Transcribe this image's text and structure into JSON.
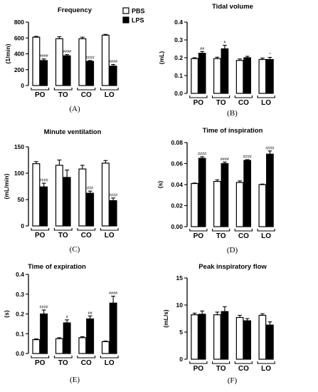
{
  "legend": {
    "pbs": "PBS",
    "lps": "LPS",
    "colors": {
      "pbs": "#ffffff",
      "lps": "#000000"
    }
  },
  "chart_data": [
    {
      "panel": "(A)",
      "type": "bar",
      "title": "Frequency",
      "ylabel": "(1/min)",
      "xlabel": "",
      "categories": [
        "PO",
        "TO",
        "CO",
        "LO"
      ],
      "ylim": [
        0,
        800
      ],
      "yticks": [
        0,
        200,
        400,
        600,
        800
      ],
      "ytick_labels": [
        "0",
        "200",
        "400",
        "600",
        "800"
      ],
      "series": [
        {
          "name": "PBS",
          "values": [
            610,
            590,
            590,
            635
          ],
          "errors": [
            10,
            25,
            20,
            10
          ]
        },
        {
          "name": "LPS",
          "values": [
            315,
            375,
            305,
            245
          ],
          "errors": [
            20,
            15,
            10,
            20
          ]
        }
      ],
      "annotations": [
        "####",
        "####",
        "####",
        "####"
      ],
      "legend": "top-right"
    },
    {
      "panel": "(B)",
      "type": "bar",
      "title": "Tidal volume",
      "ylabel": "(mL)",
      "xlabel": "",
      "categories": [
        "PO",
        "TO",
        "CO",
        "LO"
      ],
      "ylim": [
        0,
        0.4
      ],
      "yticks": [
        0,
        0.1,
        0.2,
        0.3,
        0.4
      ],
      "ytick_labels": [
        "0.0",
        "0.1",
        "0.2",
        "0.3",
        "0.4"
      ],
      "series": [
        {
          "name": "PBS",
          "values": [
            0.195,
            0.195,
            0.185,
            0.19
          ],
          "errors": [
            0.005,
            0.008,
            0.008,
            0.008
          ]
        },
        {
          "name": "LPS",
          "values": [
            0.225,
            0.25,
            0.2,
            0.19
          ],
          "errors": [
            0.01,
            0.02,
            0.008,
            0.012
          ]
        }
      ],
      "annotations": [
        "##",
        "#",
        "",
        "*"
      ]
    },
    {
      "panel": "(C)",
      "type": "bar",
      "title": "Minute ventilation",
      "ylabel": "(mL/min)",
      "xlabel": "",
      "categories": [
        "PO",
        "TO",
        "CO",
        "LO"
      ],
      "ylim": [
        0,
        150
      ],
      "yticks": [
        0,
        50,
        100,
        150
      ],
      "ytick_labels": [
        "0",
        "50",
        "100",
        "150"
      ],
      "series": [
        {
          "name": "PBS",
          "values": [
            118,
            115,
            108,
            119
          ],
          "errors": [
            4,
            10,
            7,
            5
          ]
        },
        {
          "name": "LPS",
          "values": [
            74,
            92,
            62,
            48
          ],
          "errors": [
            7,
            14,
            4,
            5
          ]
        }
      ],
      "annotations": [
        "####",
        "",
        "###",
        "####"
      ]
    },
    {
      "panel": "(D)",
      "type": "bar",
      "title": "Time of inspiration",
      "ylabel": "(s)",
      "xlabel": "",
      "categories": [
        "PO",
        "TO",
        "CO",
        "LO"
      ],
      "ylim": [
        0,
        0.08
      ],
      "yticks": [
        0,
        0.02,
        0.04,
        0.06,
        0.08
      ],
      "ytick_labels": [
        "0.00",
        "0.02",
        "0.04",
        "0.06",
        "0.08"
      ],
      "series": [
        {
          "name": "PBS",
          "values": [
            0.041,
            0.043,
            0.042,
            0.04
          ],
          "errors": [
            0.0005,
            0.0015,
            0.0015,
            0.0005
          ]
        },
        {
          "name": "LPS",
          "values": [
            0.065,
            0.06,
            0.063,
            0.069
          ],
          "errors": [
            0.0015,
            0.0015,
            0.0007,
            0.003
          ]
        }
      ],
      "annotations": [
        "####",
        "####",
        "####",
        "####"
      ]
    },
    {
      "panel": "(E)",
      "type": "bar",
      "title": "Time of expiration",
      "ylabel": "(s)",
      "xlabel": "",
      "categories": [
        "PO",
        "TO",
        "CO",
        "LO"
      ],
      "ylim": [
        0,
        0.4
      ],
      "yticks": [
        0,
        0.1,
        0.2,
        0.3,
        0.4
      ],
      "ytick_labels": [
        "0.0",
        "0.1",
        "0.2",
        "0.3",
        "0.4"
      ],
      "series": [
        {
          "name": "PBS",
          "values": [
            0.07,
            0.075,
            0.08,
            0.06
          ],
          "errors": [
            0.004,
            0.005,
            0.005,
            0.003
          ]
        },
        {
          "name": "LPS",
          "values": [
            0.2,
            0.155,
            0.175,
            0.255
          ],
          "errors": [
            0.02,
            0.015,
            0.015,
            0.035
          ]
        }
      ],
      "annotations": [
        "####",
        "#",
        "##",
        "####"
      ]
    },
    {
      "panel": "(F)",
      "type": "bar",
      "title": "Peak inspiratory flow",
      "ylabel": "(mL/s)",
      "xlabel": "",
      "categories": [
        "PO",
        "TO",
        "CO",
        "LO"
      ],
      "ylim": [
        0,
        15
      ],
      "yticks": [
        0,
        5,
        10,
        15
      ],
      "ytick_labels": [
        "0",
        "5",
        "10",
        "15"
      ],
      "series": [
        {
          "name": "PBS",
          "values": [
            8.2,
            8.2,
            7.7,
            8.1
          ],
          "errors": [
            0.3,
            0.5,
            0.4,
            0.3
          ]
        },
        {
          "name": "LPS",
          "values": [
            8.3,
            8.8,
            7.1,
            6.3
          ],
          "errors": [
            0.6,
            0.9,
            0.4,
            0.6
          ]
        }
      ],
      "annotations": [
        "",
        "",
        "",
        ""
      ]
    }
  ]
}
